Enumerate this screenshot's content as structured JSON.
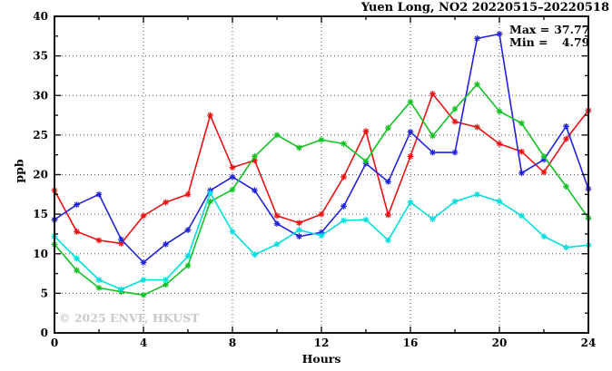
{
  "title": "Yuen Long, NO2 20220515–20220518",
  "annotation": {
    "max_label": "Max =",
    "max_value": "37.77",
    "min_label": "Min =",
    "min_value": "4.79"
  },
  "watermark": "© 2025  ENVF, HKUST",
  "chart_data": {
    "type": "line",
    "title": "Yuen Long, NO2 20220515–20220518",
    "xlabel": "Hours",
    "ylabel": "ppb",
    "xlim": [
      0,
      24
    ],
    "ylim": [
      0,
      40
    ],
    "x_ticks": [
      0,
      4,
      8,
      12,
      16,
      20,
      24
    ],
    "y_ticks": [
      0,
      5,
      10,
      15,
      20,
      25,
      30,
      35,
      40
    ],
    "x_minor_step": 2,
    "y_minor_step": 2.5,
    "grid": true,
    "grid_style": "dotted",
    "legend": "none",
    "marker": "asterisk",
    "max": 37.77,
    "min": 4.79,
    "x": [
      0,
      1,
      2,
      3,
      4,
      5,
      6,
      7,
      8,
      9,
      10,
      11,
      12,
      13,
      14,
      15,
      16,
      17,
      18,
      19,
      20,
      21,
      22,
      23,
      24
    ],
    "series": [
      {
        "name": "series-red",
        "color": "#ee1111",
        "values": [
          18.0,
          12.8,
          11.7,
          11.3,
          14.8,
          16.5,
          17.5,
          27.5,
          20.9,
          21.8,
          14.8,
          13.9,
          15.0,
          19.7,
          25.5,
          14.9,
          22.3,
          30.2,
          26.7,
          26.0,
          23.9,
          22.9,
          20.3,
          24.5,
          28.1
        ]
      },
      {
        "name": "series-blue",
        "color": "#2222dd",
        "values": [
          14.3,
          16.2,
          17.5,
          11.8,
          8.9,
          11.2,
          13.0,
          18.0,
          19.7,
          18.0,
          13.8,
          12.2,
          12.7,
          16.0,
          21.4,
          19.1,
          25.4,
          22.8,
          22.8,
          37.2,
          37.77,
          20.2,
          21.9,
          26.1,
          18.2
        ]
      },
      {
        "name": "series-green",
        "color": "#11c222",
        "values": [
          11.2,
          7.9,
          5.7,
          5.2,
          4.79,
          6.1,
          8.5,
          16.6,
          18.1,
          22.3,
          25.0,
          23.4,
          24.4,
          23.9,
          21.7,
          25.9,
          29.2,
          24.9,
          28.3,
          31.4,
          28.0,
          26.5,
          22.3,
          18.5,
          14.5
        ]
      },
      {
        "name": "series-cyan",
        "color": "#00dddd",
        "values": [
          12.2,
          9.4,
          6.7,
          5.5,
          6.7,
          6.7,
          9.7,
          17.7,
          12.8,
          9.9,
          11.2,
          13.0,
          12.3,
          14.2,
          14.3,
          11.7,
          16.5,
          14.4,
          16.6,
          17.5,
          16.6,
          14.8,
          12.2,
          10.8,
          11.1
        ]
      }
    ]
  }
}
